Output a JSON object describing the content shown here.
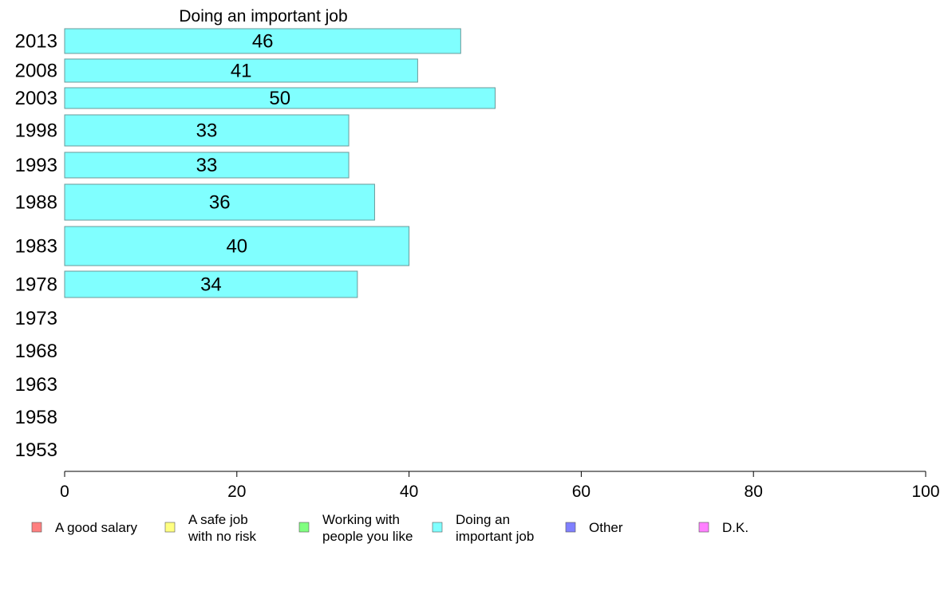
{
  "chart_data": {
    "type": "bar",
    "orientation": "horizontal",
    "title": "Doing an important job",
    "xlabel": "",
    "ylabel": "",
    "xlim": [
      0,
      100
    ],
    "x_ticks": [
      "0",
      "20",
      "40",
      "60",
      "80",
      "100"
    ],
    "categories": [
      "2013",
      "2008",
      "2003",
      "1998",
      "1993",
      "1988",
      "1983",
      "1978",
      "1973",
      "1968",
      "1963",
      "1958",
      "1953"
    ],
    "series": [
      {
        "name": "Doing an important job",
        "color": "#80ffff",
        "values": [
          46,
          41,
          50,
          33,
          33,
          36,
          40,
          34,
          null,
          null,
          null,
          null,
          null
        ]
      }
    ],
    "grid": false,
    "legend_position": "bottom",
    "legend": [
      {
        "lines": [
          "A good salary"
        ],
        "color": "#ff8080"
      },
      {
        "lines": [
          "A safe job",
          "with no risk"
        ],
        "color": "#ffff80"
      },
      {
        "lines": [
          "Working with",
          "people you like"
        ],
        "color": "#80ff80"
      },
      {
        "lines": [
          "Doing an",
          "important job"
        ],
        "color": "#80ffff"
      },
      {
        "lines": [
          "Other"
        ],
        "color": "#8080ff"
      },
      {
        "lines": [
          "D.K."
        ],
        "color": "#ff80ff"
      }
    ]
  }
}
